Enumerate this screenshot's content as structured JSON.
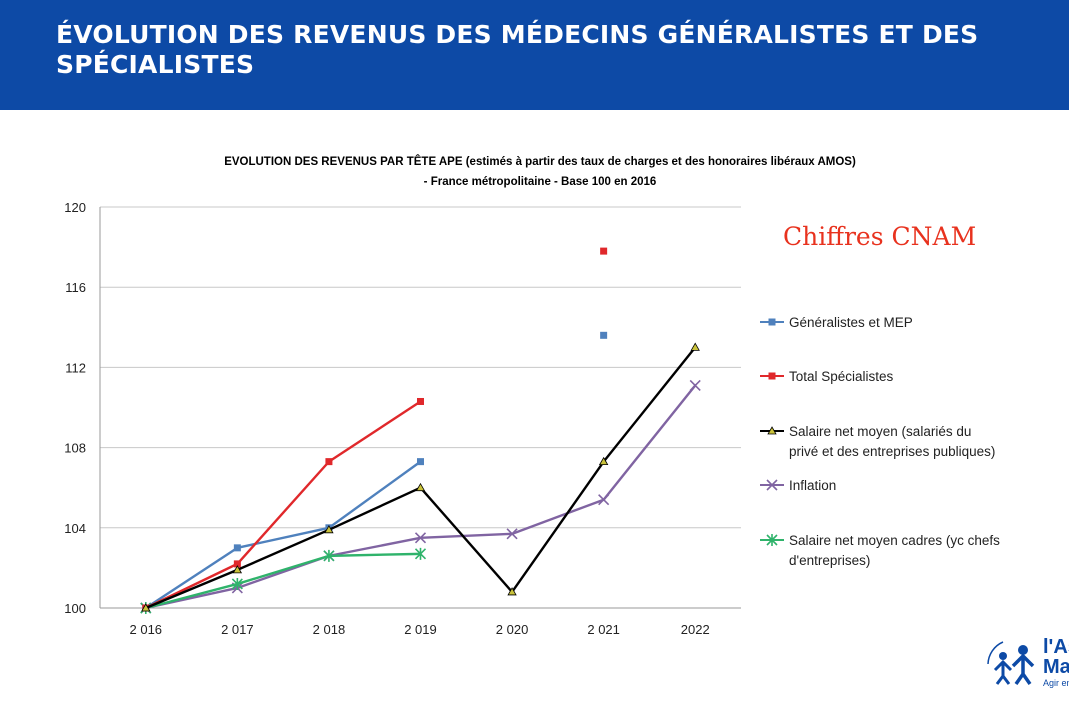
{
  "slide": {
    "title": "ÉVOLUTION DES REVENUS DES MÉDECINS GÉNÉRALISTES ET DES SPÉCIALISTES",
    "banner_color": "#0d4aa6"
  },
  "chart_data": {
    "type": "line",
    "title_line1": "EVOLUTION DES REVENUS PAR TÊTE APE (estimés à partir des taux de charges et des honoraires libéraux AMOS)",
    "title_line2": "- France métropolitaine - Base 100 en 2016",
    "annotation": "Chiffres CNAM",
    "annotation_color": "#e8321e",
    "categories": [
      "2 016",
      "2 017",
      "2 018",
      "2 019",
      "2 020",
      "2 021",
      "2022"
    ],
    "y_ticks": [
      "100",
      "104",
      "108",
      "112",
      "116",
      "120"
    ],
    "ylim": [
      100,
      120
    ],
    "y_major": 4,
    "grid": "horizontal",
    "legend_position": "right",
    "series": [
      {
        "name": "Généralistes et MEP",
        "color": "#4f81bd",
        "marker": "square",
        "values": [
          100,
          103.0,
          104.0,
          107.3,
          null,
          113.6,
          null
        ]
      },
      {
        "name": "Total Spécialistes",
        "color": "#e0282b",
        "marker": "square",
        "values": [
          100,
          102.2,
          107.3,
          110.3,
          null,
          117.8,
          null
        ]
      },
      {
        "name": "Salaire net moyen (salariés du privé et des entreprises publiques)",
        "name_lines": [
          "Salaire net moyen (salariés du",
          "privé et des entreprises publiques)"
        ],
        "color": "#000000",
        "marker": "triangle",
        "values": [
          100,
          101.9,
          103.9,
          106.0,
          100.8,
          107.3,
          113.0
        ]
      },
      {
        "name": "Inflation",
        "color": "#8064a2",
        "marker": "x",
        "values": [
          100,
          101.0,
          102.6,
          103.5,
          103.7,
          105.4,
          111.1
        ]
      },
      {
        "name": "Salaire net moyen cadres (yc chefs d'entreprises)",
        "name_lines": [
          "Salaire net moyen cadres (yc chefs",
          "d'entreprises)"
        ],
        "color": "#2fb36b",
        "marker": "star",
        "values": [
          100,
          101.2,
          102.6,
          102.7,
          null,
          null,
          null
        ]
      }
    ]
  },
  "logo": {
    "line1": "l'As",
    "line2": "Ma",
    "line3": "Agir en"
  }
}
